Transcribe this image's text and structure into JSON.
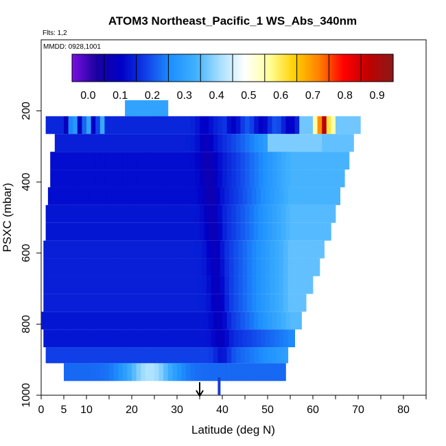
{
  "chart_data": {
    "type": "heatmap",
    "title": "ATOM3 Northeast_Pacific_1 WS_Abs_340nm",
    "flights_text": "Flts: 1,2",
    "dates_text": "MMDD: 0928,1001",
    "xlabel": "Latitude (deg N)",
    "ylabel": "PSXC (mbar)",
    "xlim": [
      0,
      85
    ],
    "ylim": [
      1000,
      0
    ],
    "x_ticks_major": [
      0,
      10,
      20,
      30,
      40,
      50,
      60,
      70,
      80
    ],
    "x_ticks_minor": [
      5,
      15,
      25,
      35,
      45,
      55,
      65,
      75,
      85
    ],
    "x_tick_labels": [
      "0",
      "5",
      "10",
      "20",
      "30",
      "40",
      "50",
      "60",
      "70",
      "80"
    ],
    "x_tick_label_values": [
      0,
      5,
      10,
      20,
      30,
      40,
      50,
      60,
      70,
      80
    ],
    "y_ticks": [
      200,
      400,
      600,
      800,
      1000
    ],
    "y_tick_labels": [
      "200",
      "400",
      "600",
      "800",
      "1000"
    ],
    "colorbar": {
      "min": -0.05,
      "max": 0.95,
      "tick_values": [
        0.0,
        0.1,
        0.2,
        0.3,
        0.4,
        0.5,
        0.6,
        0.7,
        0.8,
        0.9
      ],
      "tick_labels": [
        "0.0",
        "0.1",
        "0.2",
        "0.3",
        "0.4",
        "0.5",
        "0.6",
        "0.7",
        "0.8",
        "0.9"
      ],
      "colors": [
        "#7a10e0",
        "#1a00a0",
        "#0000c8",
        "#1040e8",
        "#1e90ff",
        "#40b0ff",
        "#a8e0ff",
        "#ffffff",
        "#ffff99",
        "#ffd000",
        "#ff8000",
        "#ff0000",
        "#c00000",
        "#8b1a1a"
      ]
    },
    "x_marker": {
      "latitude": 35,
      "symbol": "down-arrow"
    },
    "y_marker": {
      "latitude": 39.3,
      "pressure_range": [
        950,
        1000
      ]
    },
    "profile_rows": [
      {
        "p_top": 170,
        "p_bot": 215,
        "lat_min": 18.5,
        "lat_max": 28,
        "base": 0.3,
        "trough_depth": 0.0
      },
      {
        "p_top": 215,
        "p_bot": 265,
        "lat_min": 1,
        "lat_max": 70.5,
        "base": 0.15,
        "trough_depth": 0.05
      },
      {
        "p_top": 265,
        "p_bot": 315,
        "lat_min": 3,
        "lat_max": 69,
        "base": 0.14,
        "trough_depth": 0.06
      },
      {
        "p_top": 315,
        "p_bot": 365,
        "lat_min": 2,
        "lat_max": 68,
        "base": 0.12,
        "trough_depth": 0.06
      },
      {
        "p_top": 365,
        "p_bot": 415,
        "lat_min": 2,
        "lat_max": 67,
        "base": 0.12,
        "trough_depth": 0.06
      },
      {
        "p_top": 415,
        "p_bot": 465,
        "lat_min": 1.5,
        "lat_max": 66,
        "base": 0.12,
        "trough_depth": 0.06
      },
      {
        "p_top": 465,
        "p_bot": 515,
        "lat_min": 1,
        "lat_max": 65,
        "base": 0.13,
        "trough_depth": 0.06
      },
      {
        "p_top": 515,
        "p_bot": 565,
        "lat_min": 1,
        "lat_max": 64,
        "base": 0.13,
        "trough_depth": 0.06
      },
      {
        "p_top": 565,
        "p_bot": 615,
        "lat_min": 0.5,
        "lat_max": 62.5,
        "base": 0.14,
        "trough_depth": 0.06
      },
      {
        "p_top": 615,
        "p_bot": 665,
        "lat_min": 0.5,
        "lat_max": 61.5,
        "base": 0.14,
        "trough_depth": 0.06
      },
      {
        "p_top": 665,
        "p_bot": 715,
        "lat_min": 0.5,
        "lat_max": 60,
        "base": 0.14,
        "trough_depth": 0.06
      },
      {
        "p_top": 715,
        "p_bot": 765,
        "lat_min": 0.5,
        "lat_max": 58.5,
        "base": 0.14,
        "trough_depth": 0.06
      },
      {
        "p_top": 765,
        "p_bot": 815,
        "lat_min": 0,
        "lat_max": 57.5,
        "base": 0.13,
        "trough_depth": 0.05
      },
      {
        "p_top": 815,
        "p_bot": 865,
        "lat_min": 0.5,
        "lat_max": 56,
        "base": 0.13,
        "trough_depth": 0.05
      },
      {
        "p_top": 865,
        "p_bot": 910,
        "lat_min": 1,
        "lat_max": 54.5,
        "base": 0.18,
        "trough_depth": 0.06
      },
      {
        "p_top": 910,
        "p_bot": 960,
        "lat_min": 5,
        "lat_max": 54,
        "base": 0.3,
        "trough_depth": 0.0
      }
    ]
  }
}
